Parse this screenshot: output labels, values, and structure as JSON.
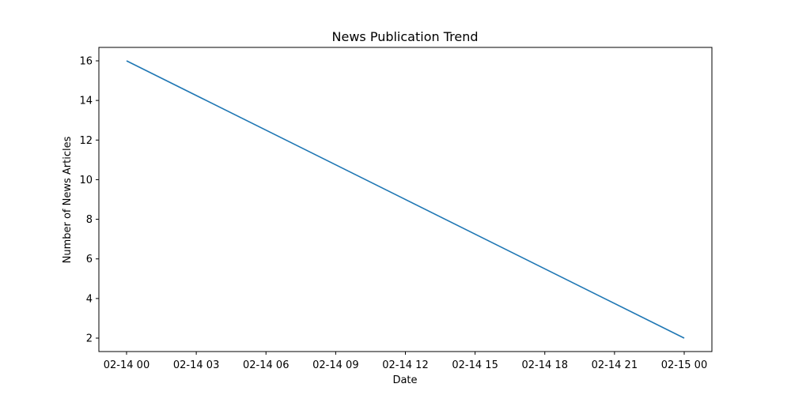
{
  "chart_data": {
    "type": "line",
    "title": "News Publication Trend",
    "xlabel": "Date",
    "ylabel": "Number of News Articles",
    "x_ticks": [
      "02-14 00",
      "02-14 03",
      "02-14 06",
      "02-14 09",
      "02-14 12",
      "02-14 15",
      "02-14 18",
      "02-14 21",
      "02-15 00"
    ],
    "y_ticks": [
      "2",
      "4",
      "6",
      "8",
      "10",
      "12",
      "14",
      "16"
    ],
    "grid": false,
    "legend": "none",
    "series": [
      {
        "color": "#1f77b4",
        "points": [
          {
            "x": "02-14 00",
            "y": 16
          },
          {
            "x": "02-15 00",
            "y": 2
          }
        ]
      }
    ]
  }
}
